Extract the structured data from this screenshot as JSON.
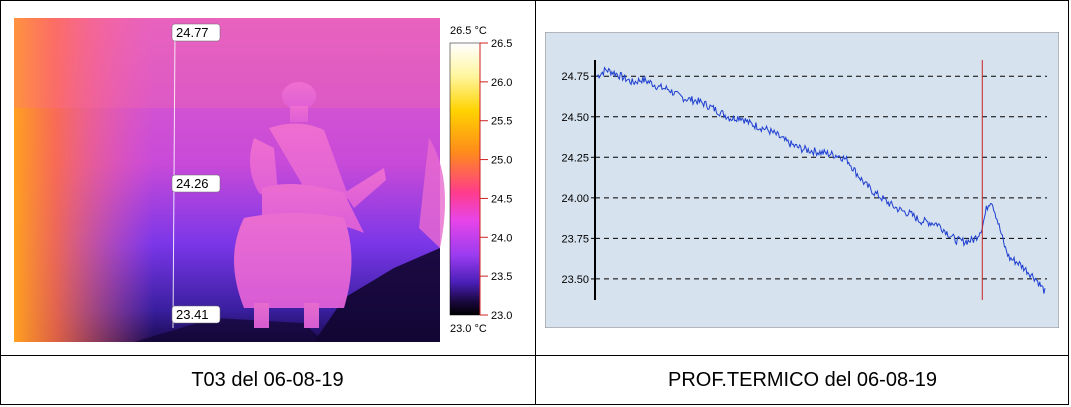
{
  "captions": {
    "left": "T03 del 06-08-19",
    "right": "PROF.TERMICO del 06-08-19"
  },
  "thermal": {
    "line_readings": [
      "24.77",
      "24.26",
      "23.41"
    ],
    "scale_max_label": "26.5 °C",
    "scale_min_label": "23.0 °C",
    "scale_ticks": [
      "26.5",
      "26.0",
      "25.5",
      "25.0",
      "24.5",
      "24.0",
      "23.5",
      "23.0"
    ],
    "palette": [
      "#ffffff",
      "#fff6a0",
      "#ffd200",
      "#ff8c1a",
      "#ff3c8c",
      "#e845e8",
      "#9b3cf0",
      "#4a1fb8",
      "#1a0840",
      "#000000"
    ]
  },
  "chart_data": {
    "type": "line",
    "title": "",
    "xlabel": "",
    "ylabel": "",
    "ylim": [
      23.37,
      24.85
    ],
    "yticks": [
      24.75,
      24.5,
      24.25,
      24.0,
      23.75,
      23.5
    ],
    "ytick_labels": [
      "24.75",
      "24.50",
      "24.25",
      "24.00",
      "23.75",
      "23.50"
    ],
    "grid": "horizontal dashed",
    "line_color": "#1f3fd0",
    "marker_color": "#cc2222",
    "marker_x": 0.86,
    "x": [
      0,
      0.02,
      0.04,
      0.06,
      0.08,
      0.1,
      0.12,
      0.14,
      0.16,
      0.18,
      0.2,
      0.22,
      0.24,
      0.26,
      0.28,
      0.3,
      0.32,
      0.34,
      0.36,
      0.38,
      0.4,
      0.42,
      0.44,
      0.46,
      0.48,
      0.5,
      0.52,
      0.54,
      0.56,
      0.58,
      0.6,
      0.62,
      0.64,
      0.66,
      0.68,
      0.7,
      0.72,
      0.74,
      0.76,
      0.78,
      0.8,
      0.82,
      0.84,
      0.85,
      0.86,
      0.87,
      0.88,
      0.89,
      0.9,
      0.91,
      0.92,
      0.94,
      0.96,
      0.98,
      1.0
    ],
    "values": [
      24.75,
      24.79,
      24.77,
      24.74,
      24.71,
      24.73,
      24.71,
      24.68,
      24.67,
      24.63,
      24.61,
      24.6,
      24.58,
      24.55,
      24.52,
      24.49,
      24.5,
      24.46,
      24.44,
      24.42,
      24.39,
      24.35,
      24.32,
      24.3,
      24.29,
      24.28,
      24.27,
      24.26,
      24.23,
      24.15,
      24.08,
      24.03,
      23.99,
      23.95,
      23.92,
      23.9,
      23.86,
      23.85,
      23.84,
      23.79,
      23.74,
      23.73,
      23.74,
      23.77,
      23.82,
      23.94,
      23.99,
      23.9,
      23.8,
      23.7,
      23.63,
      23.6,
      23.55,
      23.5,
      23.42
    ]
  }
}
